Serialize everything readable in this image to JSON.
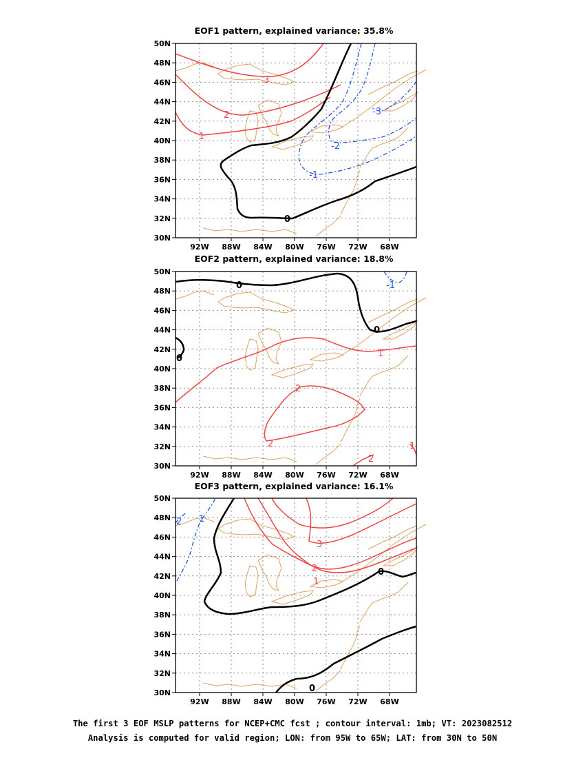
{
  "panels": [
    {
      "title": "EOF1 pattern, explained variance: 35.8%"
    },
    {
      "title": "EOF2 pattern, explained variance: 18.8%"
    },
    {
      "title": "EOF3 pattern, explained variance: 16.1%"
    }
  ],
  "axes": {
    "lat_labels": [
      "30N",
      "32N",
      "34N",
      "36N",
      "38N",
      "40N",
      "42N",
      "44N",
      "46N",
      "48N",
      "50N"
    ],
    "lon_labels": [
      "92W",
      "88W",
      "84W",
      "80W",
      "76W",
      "72W",
      "68W"
    ]
  },
  "caption": {
    "line1": "The first 3 EOF MSLP patterns for NCEP+CMC fcst ; contour interval: 1mb; VT: 2023082512",
    "line2": "Analysis is computed for valid region; LON: from 95W to 65W; LAT: from 30N to 50N"
  },
  "contour_labels": {
    "p1": [
      "3",
      "2",
      "1",
      "0",
      "-1",
      "-2",
      "-3"
    ],
    "p2": [
      "0",
      "0",
      "0",
      "-1",
      "1",
      "2",
      "2",
      "2",
      "1"
    ],
    "p3": [
      "2",
      "1",
      "3",
      "2",
      "1",
      "0",
      "0"
    ]
  },
  "colors": {
    "positive": "#ee4444",
    "negative": "#2255ee",
    "zero": "#000000",
    "coast": "#e0a060",
    "grid": "#8c8c8c"
  },
  "chart_data": {
    "type": "map",
    "region": {
      "lon": [
        -95,
        -65
      ],
      "lat": [
        30,
        50
      ]
    },
    "contour_interval_mb": 1,
    "panels": [
      {
        "name": "EOF1",
        "explained_variance_pct": 35.8,
        "contour_levels_shown": [
          3,
          2,
          1,
          0,
          -1,
          -2,
          -3
        ]
      },
      {
        "name": "EOF2",
        "explained_variance_pct": 18.8,
        "contour_levels_shown": [
          2,
          1,
          0,
          -1
        ]
      },
      {
        "name": "EOF3",
        "explained_variance_pct": 16.1,
        "contour_levels_shown": [
          3,
          2,
          1,
          0,
          -1,
          -2
        ]
      }
    ],
    "grid": true
  }
}
